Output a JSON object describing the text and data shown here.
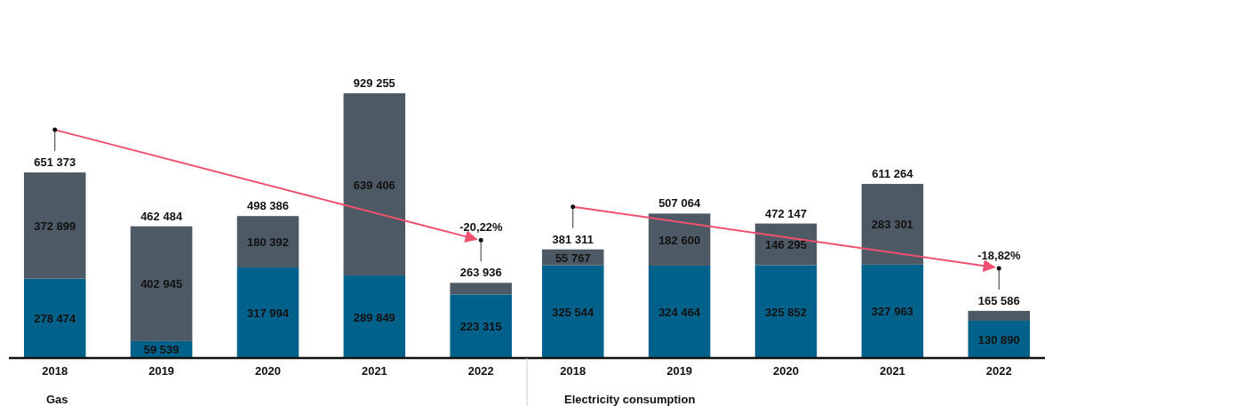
{
  "chart_data": [
    {
      "type": "bar",
      "stacked": true,
      "xlabel": "Gas",
      "categories": [
        "2018",
        "2019",
        "2020",
        "2021",
        "2022"
      ],
      "series": [
        {
          "color": "#00628b",
          "values": [
            278474,
            59539,
            317994,
            289849,
            223315
          ],
          "value_labels": [
            "278 474",
            "59 539",
            "317 994",
            "289 849",
            "223 315"
          ]
        },
        {
          "color": "#4d5a66",
          "values": [
            372899,
            402945,
            180392,
            639406,
            40621
          ],
          "value_labels": [
            "372 899",
            "402 945",
            "180 392",
            "639 406",
            null
          ]
        }
      ],
      "totals": [
        "651 373",
        "462 484",
        "498 386",
        "929 255",
        "263 936"
      ],
      "annotations": [
        "-20,22%"
      ]
    },
    {
      "type": "bar",
      "stacked": true,
      "xlabel": "Electricity consumption",
      "categories": [
        "2018",
        "2019",
        "2020",
        "2021",
        "2022"
      ],
      "series": [
        {
          "color": "#00628b",
          "values": [
            325544,
            324464,
            325852,
            327963,
            130890
          ],
          "value_labels": [
            "325 544",
            "324 464",
            "325 852",
            "327 963",
            "130 890"
          ]
        },
        {
          "color": "#4d5a66",
          "values": [
            55767,
            182600,
            146295,
            283301,
            34696
          ],
          "value_labels": [
            "55 767",
            "182 600",
            "146 295",
            "283 301",
            null
          ]
        }
      ],
      "totals": [
        "381 311",
        "507 064",
        "472 147",
        "611 264",
        "165 586"
      ],
      "annotations": [
        "-18,82%"
      ]
    }
  ]
}
